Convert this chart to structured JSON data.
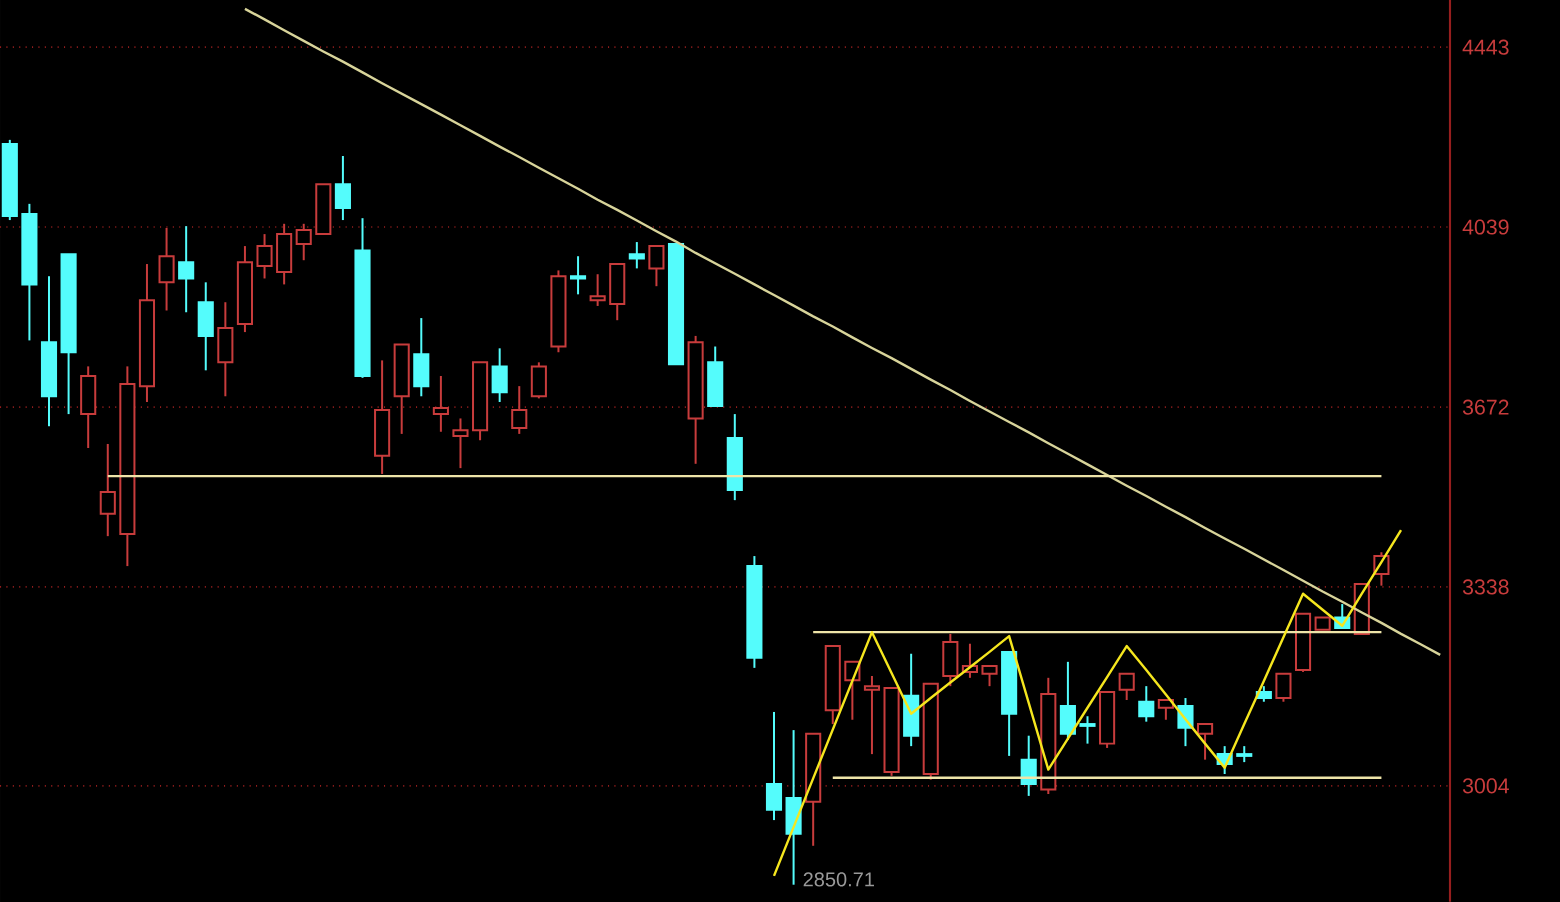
{
  "chart_data": {
    "type": "candlestick",
    "categories": [
      null,
      null,
      null,
      null,
      null,
      null,
      null,
      null,
      null,
      null,
      null,
      null,
      null,
      null,
      null,
      null,
      null,
      null,
      null,
      null,
      null,
      null,
      null,
      null,
      null,
      null,
      null,
      null,
      null,
      null,
      null,
      null,
      null,
      null,
      null,
      null,
      null,
      null,
      null,
      null,
      null,
      null,
      null,
      null,
      null,
      null,
      null,
      null,
      null,
      null,
      null,
      null,
      null,
      null,
      null,
      null,
      null,
      null,
      null,
      null,
      null,
      null,
      null,
      null,
      null,
      null,
      null,
      null,
      null,
      null,
      null,
      null,
      null,
      null
    ],
    "ohlc": [
      [
        4221,
        4230,
        4054,
        4063
      ],
      [
        4067,
        4089,
        3804,
        3919
      ],
      [
        3800,
        3936,
        3635,
        3693
      ],
      [
        3982,
        3982,
        3658,
        3780
      ],
      [
        3658,
        3752,
        3593,
        3733
      ],
      [
        3470,
        3601,
        3429,
        3510
      ],
      [
        3433,
        3752,
        3375,
        3717
      ],
      [
        3713,
        3961,
        3682,
        3886
      ],
      [
        3923,
        4037,
        3865,
        3978
      ],
      [
        3965,
        4041,
        3861,
        3931
      ],
      [
        3882,
        3923,
        3744,
        3813
      ],
      [
        3760,
        3882,
        3693,
        3829
      ],
      [
        3837,
        3999,
        3821,
        3965
      ],
      [
        3957,
        4024,
        3931,
        3999
      ],
      [
        3944,
        4046,
        3919,
        4024
      ],
      [
        4003,
        4046,
        3969,
        4033
      ],
      [
        4024,
        4132,
        4024,
        4132
      ],
      [
        4132,
        4194,
        4054,
        4080
      ],
      [
        3990,
        4058,
        3729,
        3733
      ],
      [
        3578,
        3764,
        3544,
        3666
      ],
      [
        3693,
        3796,
        3620,
        3796
      ],
      [
        3776,
        3849,
        3693,
        3713
      ],
      [
        3658,
        3733,
        3624,
        3670
      ],
      [
        3616,
        3650,
        3555,
        3627
      ],
      [
        3627,
        3760,
        3608,
        3760
      ],
      [
        3752,
        3788,
        3682,
        3701
      ],
      [
        3631,
        3713,
        3620,
        3666
      ],
      [
        3693,
        3760,
        3689,
        3752
      ],
      [
        3792,
        3948,
        3780,
        3936
      ],
      [
        3936,
        3978,
        3898,
        3931
      ],
      [
        3886,
        3940,
        3874,
        3894
      ],
      [
        3878,
        3961,
        3845,
        3961
      ],
      [
        3982,
        4007,
        3952,
        3973
      ],
      [
        3952,
        3999,
        3915,
        3999
      ],
      [
        4003,
        4003,
        3756,
        3756
      ],
      [
        3650,
        3813,
        3563,
        3800
      ],
      [
        3760,
        3792,
        3674,
        3674
      ],
      [
        3612,
        3658,
        3495,
        3514
      ],
      [
        3375,
        3393,
        3198,
        3215
      ],
      [
        3007,
        3124,
        2950,
        2966
      ],
      [
        2985,
        3094,
        2850.71,
        2929
      ],
      [
        2979,
        3088,
        2910,
        3088
      ],
      [
        3127,
        3235,
        3104,
        3235
      ],
      [
        3177,
        3208,
        3111,
        3208
      ],
      [
        3161,
        3184,
        3055,
        3167
      ],
      [
        3026,
        3164,
        3020,
        3164
      ],
      [
        3151,
        3222,
        3068,
        3085
      ],
      [
        3023,
        3171,
        3014,
        3171
      ],
      [
        3184,
        3256,
        3167,
        3242
      ],
      [
        3191,
        3239,
        3181,
        3201
      ],
      [
        3188,
        3201,
        3167,
        3201
      ],
      [
        3225,
        3225,
        3052,
        3121
      ],
      [
        3046,
        3085,
        2988,
        3007
      ],
      [
        2998,
        3181,
        2991,
        3154
      ],
      [
        3134,
        3208,
        3078,
        3088
      ],
      [
        3104,
        3117,
        3072,
        3101
      ],
      [
        3072,
        3157,
        3065,
        3157
      ],
      [
        3161,
        3188,
        3144,
        3188
      ],
      [
        3141,
        3167,
        3108,
        3117
      ],
      [
        3131,
        3144,
        3111,
        3144
      ],
      [
        3134,
        3147,
        3068,
        3098
      ],
      [
        3088,
        3104,
        3046,
        3104
      ],
      [
        3055,
        3068,
        3023,
        3039
      ],
      [
        3055,
        3068,
        3042,
        3052
      ],
      [
        3157,
        3167,
        3141,
        3147
      ],
      [
        3147,
        3188,
        3141,
        3188
      ],
      [
        3194,
        3291,
        3191,
        3291
      ],
      [
        3263,
        3284,
        3263,
        3284
      ],
      [
        3284,
        3308,
        3266,
        3266
      ],
      [
        3256,
        3343,
        3256,
        3343
      ],
      [
        3361,
        3400,
        3340,
        3393
      ],
      null,
      null,
      null
    ],
    "colors": [
      "#54fcfc",
      "#54fcfc",
      "#54fcfc",
      "#54fcfc",
      "#c83c3c",
      "#c83c3c",
      "#c83c3c",
      "#c83c3c",
      "#c83c3c",
      "#54fcfc",
      "#54fcfc",
      "#c83c3c",
      "#c83c3c",
      "#c83c3c",
      "#c83c3c",
      "#c83c3c",
      "#c83c3c",
      "#54fcfc",
      "#54fcfc",
      "#c83c3c",
      "#c83c3c",
      "#54fcfc",
      "#c83c3c",
      "#c83c3c",
      "#c83c3c",
      "#54fcfc",
      "#c83c3c",
      "#c83c3c",
      "#c83c3c",
      "#54fcfc",
      "#c83c3c",
      "#c83c3c",
      "#54fcfc",
      "#c83c3c",
      "#54fcfc",
      "#c83c3c",
      "#54fcfc",
      "#54fcfc",
      "#54fcfc",
      "#54fcfc",
      "#54fcfc",
      "#c83c3c",
      "#c83c3c",
      "#c83c3c",
      "#c83c3c",
      "#c83c3c",
      "#54fcfc",
      "#c83c3c",
      "#c83c3c",
      "#c83c3c",
      "#c83c3c",
      "#54fcfc",
      "#54fcfc",
      "#c83c3c",
      "#54fcfc",
      "#54fcfc",
      "#c83c3c",
      "#c83c3c",
      "#54fcfc",
      "#c83c3c",
      "#54fcfc",
      "#c83c3c",
      "#54fcfc",
      "#54fcfc",
      "#54fcfc",
      "#c83c3c",
      "#c83c3c",
      "#c83c3c",
      "#54fcfc",
      "#c83c3c",
      "#c83c3c",
      null,
      null,
      null
    ],
    "series": [
      {
        "type": "line",
        "color": "#d8d49a",
        "values": [
          null,
          null,
          null,
          null,
          null,
          null,
          null,
          null,
          null,
          null,
          null,
          null,
          4534,
          4509,
          4483,
          4458,
          4433,
          4409,
          4384,
          4359,
          4335,
          4311,
          4287,
          4263,
          4239,
          4215,
          4192,
          4168,
          4145,
          4122,
          4098,
          4076,
          4053,
          4030,
          4008,
          3985,
          3963,
          3941,
          3919,
          3897,
          3875,
          3853,
          3832,
          3810,
          3789,
          3768,
          3747,
          3726,
          3705,
          3684,
          3663,
          3643,
          3623,
          3602,
          3582,
          3562,
          3542,
          3522,
          3503,
          3483,
          3464,
          3444,
          3425,
          3406,
          3387,
          3368,
          3349,
          3330,
          3312,
          3293,
          3275,
          3256,
          3238,
          3220
        ]
      },
      {
        "type": "line",
        "color": "#eee4a8",
        "values": [
          null,
          null,
          null,
          null,
          null,
          3540,
          3540,
          3540,
          3540,
          3540,
          3540,
          3540,
          3540,
          3540,
          3540,
          3540,
          3540,
          3540,
          3540,
          3540,
          3540,
          3540,
          3540,
          3540,
          3540,
          3540,
          3540,
          3540,
          3540,
          3540,
          3540,
          3540,
          3540,
          3540,
          3540,
          3540,
          3540,
          3540,
          3540,
          3540,
          3540,
          3540,
          3540,
          3540,
          3540,
          3540,
          3540,
          3540,
          3540,
          3540,
          3540,
          3540,
          3540,
          3540,
          3540,
          3540,
          3540,
          3540,
          3540,
          3540,
          3540,
          3540,
          3540,
          3540,
          3540,
          3540,
          3540,
          3540,
          3540,
          3540,
          3540,
          null,
          null,
          null
        ]
      },
      {
        "type": "line",
        "color": "#eee4a8",
        "values": [
          null,
          null,
          null,
          null,
          null,
          null,
          null,
          null,
          null,
          null,
          null,
          null,
          null,
          null,
          null,
          null,
          null,
          null,
          null,
          null,
          null,
          null,
          null,
          null,
          null,
          null,
          null,
          null,
          null,
          null,
          null,
          null,
          null,
          null,
          null,
          null,
          null,
          null,
          null,
          null,
          null,
          3259,
          3259,
          3259,
          3259,
          3259,
          3259,
          3259,
          3259,
          3259,
          3259,
          3259,
          3259,
          3259,
          3259,
          3259,
          3259,
          3259,
          3259,
          3259,
          3259,
          3259,
          3259,
          3259,
          3259,
          3259,
          3259,
          3259,
          3259,
          3259,
          3259,
          null,
          null,
          null
        ]
      },
      {
        "type": "line",
        "color": "#eee4a8",
        "values": [
          null,
          null,
          null,
          null,
          null,
          null,
          null,
          null,
          null,
          null,
          null,
          null,
          null,
          null,
          null,
          null,
          null,
          null,
          null,
          null,
          null,
          null,
          null,
          null,
          null,
          null,
          null,
          null,
          null,
          null,
          null,
          null,
          null,
          null,
          null,
          null,
          null,
          null,
          null,
          null,
          null,
          null,
          3017,
          3017,
          3017,
          3017,
          3017,
          3017,
          3017,
          3017,
          3017,
          3017,
          3017,
          3017,
          3017,
          3017,
          3017,
          3017,
          3017,
          3017,
          3017,
          3017,
          3017,
          3017,
          3017,
          3017,
          3017,
          3017,
          3017,
          3017,
          3017,
          null,
          null,
          null
        ]
      },
      {
        "type": "line",
        "color": "#f5e61e",
        "values": [
          null,
          null,
          null,
          null,
          null,
          null,
          null,
          null,
          null,
          null,
          null,
          null,
          null,
          null,
          null,
          null,
          null,
          null,
          null,
          null,
          null,
          null,
          null,
          null,
          null,
          null,
          null,
          null,
          null,
          null,
          null,
          null,
          null,
          null,
          null,
          null,
          null,
          null,
          null,
          2864,
          2939,
          3016,
          3095,
          3176,
          3259,
          3189,
          3121,
          3147,
          3173,
          3199,
          3225,
          3252,
          3139,
          3030,
          3080,
          3131,
          3182,
          3235,
          3194,
          3153,
          3112,
          3072,
          3033,
          3104,
          3176,
          3250,
          3326,
          3298,
          3270,
          3326,
          3382,
          3440,
          null,
          null
        ]
      }
    ],
    "ylim": [
      2825,
      4556
    ],
    "log": "y",
    "yticks": [
      3004,
      3338,
      3672,
      4039,
      4443
    ],
    "grid": "y",
    "annotations": [
      "2850.71"
    ]
  }
}
